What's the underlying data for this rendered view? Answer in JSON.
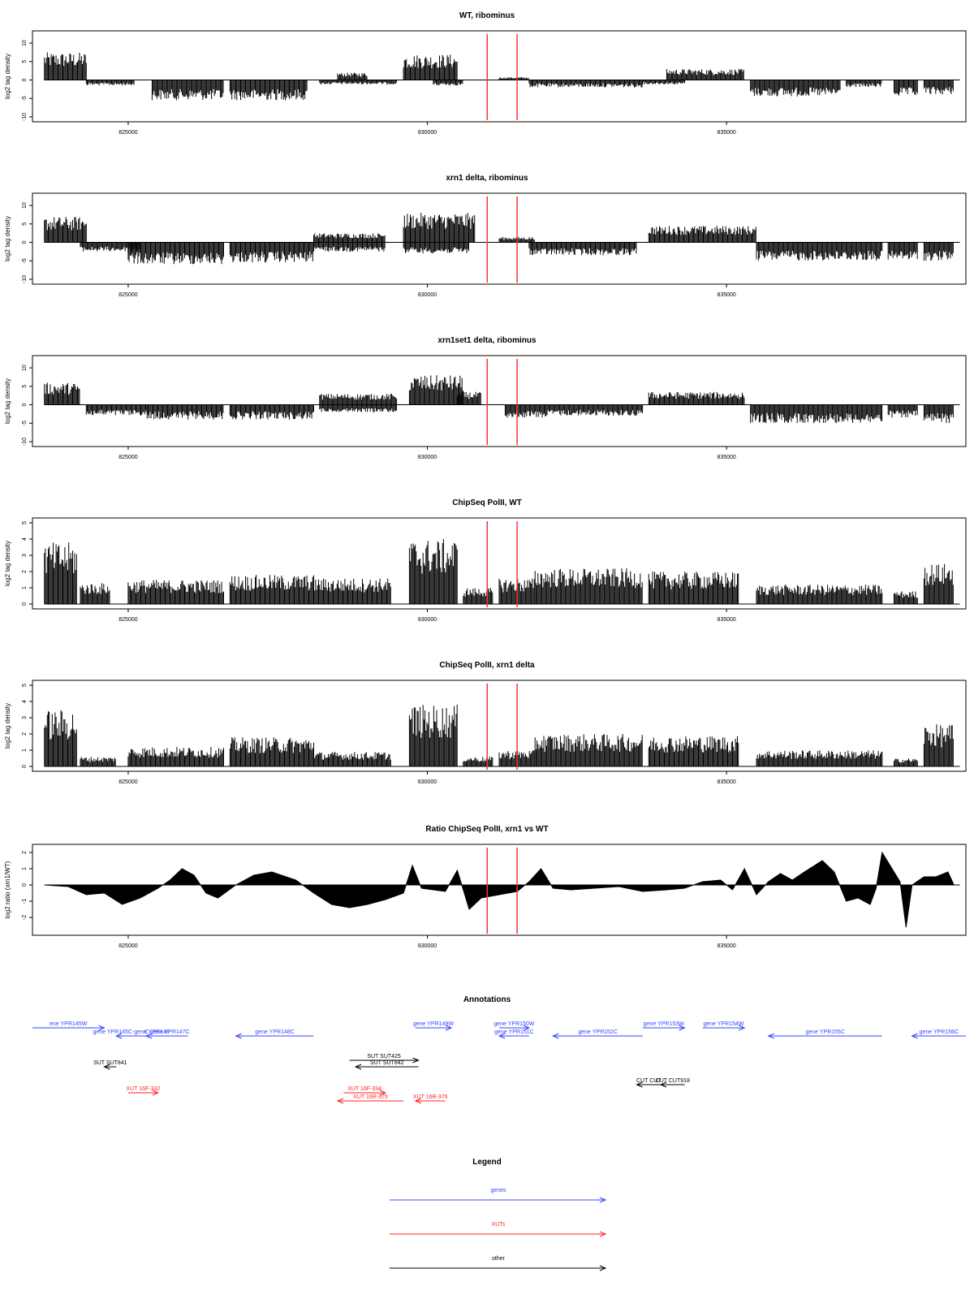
{
  "colors": {
    "gene": "#3344ff",
    "xut": "#ff2222",
    "other": "#000000",
    "marker": "#ff3333",
    "signal": "#000000"
  },
  "chart_data": [
    {
      "type": "bar",
      "title": "WT, ribominus",
      "ylabel": "log2 tag density",
      "xlim": [
        823400,
        839000
      ],
      "ylim": [
        -10,
        12
      ],
      "yticks": [
        -10,
        -5,
        0,
        5,
        10
      ],
      "xticks": [
        825000,
        830000,
        835000
      ],
      "markers": [
        831000,
        831500
      ],
      "segments": [
        {
          "x": [
            823600,
            824300
          ],
          "y": 7.5
        },
        {
          "x": [
            824300,
            825100
          ],
          "y": -1.5
        },
        {
          "x": [
            825400,
            826600
          ],
          "y": -5.5
        },
        {
          "x": [
            826700,
            828000
          ],
          "y": -5.5
        },
        {
          "x": [
            828200,
            829500
          ],
          "y": -1.2
        },
        {
          "x": [
            828500,
            829000
          ],
          "y": 2.0
        },
        {
          "x": [
            829600,
            830500
          ],
          "y": 7.0
        },
        {
          "x": [
            830100,
            830600
          ],
          "y": -1.5
        },
        {
          "x": [
            831200,
            831700
          ],
          "y": 0.8
        },
        {
          "x": [
            831700,
            833600
          ],
          "y": -2.0
        },
        {
          "x": [
            833600,
            834300
          ],
          "y": -1.2
        },
        {
          "x": [
            835400,
            836900
          ],
          "y": -4.5
        },
        {
          "x": [
            837000,
            837600
          ],
          "y": -2.0
        },
        {
          "x": [
            837800,
            838200
          ],
          "y": -4.5
        },
        {
          "x": [
            838300,
            838800
          ],
          "y": -4.0
        }
      ],
      "peaks": [
        {
          "x": [
            834000,
            835300
          ],
          "y": 3.0
        }
      ]
    },
    {
      "type": "bar",
      "title": "xrn1 delta, ribominus",
      "ylabel": "log2 tag density",
      "xlim": [
        823400,
        839000
      ],
      "ylim": [
        -10,
        12
      ],
      "yticks": [
        -10,
        -5,
        0,
        5,
        10
      ],
      "xticks": [
        825000,
        830000,
        835000
      ],
      "markers": [
        831000,
        831500
      ],
      "segments": [
        {
          "x": [
            823600,
            824300
          ],
          "y": 7.0
        },
        {
          "x": [
            824200,
            825200
          ],
          "y": -2.5
        },
        {
          "x": [
            825000,
            826600
          ],
          "y": -6.0
        },
        {
          "x": [
            826700,
            828100
          ],
          "y": -5.5
        },
        {
          "x": [
            828100,
            829300
          ],
          "y": 2.5
        },
        {
          "x": [
            828100,
            829300
          ],
          "y": -2.5
        },
        {
          "x": [
            829600,
            830800
          ],
          "y": 8.0
        },
        {
          "x": [
            829600,
            830700
          ],
          "y": -3.0
        },
        {
          "x": [
            831200,
            831800
          ],
          "y": 1.5
        },
        {
          "x": [
            831700,
            833500
          ],
          "y": -3.5
        },
        {
          "x": [
            833700,
            835500
          ],
          "y": 4.5
        },
        {
          "x": [
            835500,
            837600
          ],
          "y": -5.0
        },
        {
          "x": [
            837700,
            838200
          ],
          "y": -5.0
        },
        {
          "x": [
            838300,
            838800
          ],
          "y": -5.0
        }
      ],
      "peaks": []
    },
    {
      "type": "bar",
      "title": "xrn1set1 delta, ribominus",
      "ylabel": "log2 tag density",
      "xlim": [
        823400,
        839000
      ],
      "ylim": [
        -10,
        12
      ],
      "yticks": [
        -10,
        -5,
        0,
        5,
        10
      ],
      "xticks": [
        825000,
        830000,
        835000
      ],
      "markers": [
        831000,
        831500
      ],
      "segments": [
        {
          "x": [
            823600,
            824200
          ],
          "y": 6.0
        },
        {
          "x": [
            824300,
            825300
          ],
          "y": -3.0
        },
        {
          "x": [
            825300,
            826600
          ],
          "y": -4.0
        },
        {
          "x": [
            826700,
            828100
          ],
          "y": -4.0
        },
        {
          "x": [
            828200,
            829500
          ],
          "y": 3.0
        },
        {
          "x": [
            828200,
            829500
          ],
          "y": -2.0
        },
        {
          "x": [
            829700,
            830600
          ],
          "y": 8.0
        },
        {
          "x": [
            830500,
            830900
          ],
          "y": 3.5
        },
        {
          "x": [
            831300,
            832000
          ],
          "y": -3.5
        },
        {
          "x": [
            832000,
            833600
          ],
          "y": -3.0
        },
        {
          "x": [
            833700,
            835300
          ],
          "y": 3.5
        },
        {
          "x": [
            835400,
            837600
          ],
          "y": -5.0
        },
        {
          "x": [
            837700,
            838200
          ],
          "y": -3.5
        },
        {
          "x": [
            838300,
            838800
          ],
          "y": -5.0
        }
      ],
      "peaks": []
    },
    {
      "type": "bar",
      "title": "ChipSeq PolII, WT",
      "ylabel": "log2 tag density",
      "xlim": [
        823400,
        839000
      ],
      "ylim": [
        0,
        5
      ],
      "yticks": [
        0,
        1,
        2,
        3,
        4,
        5
      ],
      "xticks": [
        825000,
        830000,
        835000
      ],
      "markers": [
        831000,
        831500
      ],
      "segments": [
        {
          "x": [
            823600,
            824150
          ],
          "y": 3.8
        },
        {
          "x": [
            824200,
            824700
          ],
          "y": 1.3
        },
        {
          "x": [
            825000,
            826600
          ],
          "y": 1.5
        },
        {
          "x": [
            826700,
            828100
          ],
          "y": 1.8
        },
        {
          "x": [
            828100,
            829400
          ],
          "y": 1.6
        },
        {
          "x": [
            829700,
            830500
          ],
          "y": 4.0
        },
        {
          "x": [
            830600,
            831100
          ],
          "y": 1.0
        },
        {
          "x": [
            831200,
            831800
          ],
          "y": 1.6
        },
        {
          "x": [
            831800,
            833600
          ],
          "y": 2.2
        },
        {
          "x": [
            833700,
            835200
          ],
          "y": 2.0
        },
        {
          "x": [
            835500,
            837600
          ],
          "y": 1.2
        },
        {
          "x": [
            837800,
            838200
          ],
          "y": 0.8
        },
        {
          "x": [
            838300,
            838800
          ],
          "y": 2.5
        }
      ],
      "peaks": []
    },
    {
      "type": "bar",
      "title": "ChipSeq PolII, xrn1 delta",
      "ylabel": "log2 tag density",
      "xlim": [
        823400,
        839000
      ],
      "ylim": [
        0,
        5
      ],
      "yticks": [
        0,
        1,
        2,
        3,
        4,
        5
      ],
      "xticks": [
        825000,
        830000,
        835000
      ],
      "markers": [
        831000,
        831500
      ],
      "segments": [
        {
          "x": [
            823600,
            824150
          ],
          "y": 3.5
        },
        {
          "x": [
            824200,
            824800
          ],
          "y": 0.6
        },
        {
          "x": [
            825000,
            826600
          ],
          "y": 1.2
        },
        {
          "x": [
            826700,
            828100
          ],
          "y": 1.8
        },
        {
          "x": [
            828100,
            829400
          ],
          "y": 0.9
        },
        {
          "x": [
            829700,
            830500
          ],
          "y": 3.8
        },
        {
          "x": [
            830600,
            831100
          ],
          "y": 0.6
        },
        {
          "x": [
            831200,
            831800
          ],
          "y": 1.0
        },
        {
          "x": [
            831800,
            833600
          ],
          "y": 2.0
        },
        {
          "x": [
            833700,
            835200
          ],
          "y": 1.9
        },
        {
          "x": [
            835500,
            837600
          ],
          "y": 1.0
        },
        {
          "x": [
            837800,
            838200
          ],
          "y": 0.5
        },
        {
          "x": [
            838300,
            838800
          ],
          "y": 2.6
        }
      ],
      "peaks": []
    },
    {
      "type": "area",
      "title": "Ratio ChipSeq PolII, xrn1 vs WT",
      "ylabel": "log2 ratio (xrn1/WT)",
      "xlim": [
        823400,
        839000
      ],
      "ylim": [
        -2.8,
        2.2
      ],
      "yticks": [
        -2,
        -1,
        0,
        1,
        2
      ],
      "xticks": [
        825000,
        830000,
        835000
      ],
      "markers": [
        831000,
        831500
      ],
      "x": [
        823600,
        824000,
        824300,
        824600,
        824900,
        825200,
        825500,
        825700,
        825900,
        826100,
        826300,
        826500,
        826800,
        827100,
        827400,
        827800,
        828100,
        828400,
        828700,
        829000,
        829300,
        829600,
        829750,
        829900,
        830100,
        830300,
        830500,
        830700,
        830900,
        831200,
        831500,
        831700,
        831900,
        832100,
        832400,
        832800,
        833200,
        833600,
        834000,
        834300,
        834600,
        834900,
        835100,
        835300,
        835500,
        835700,
        835900,
        836100,
        836300,
        836600,
        836800,
        837000,
        837200,
        837400,
        837500,
        837600,
        837800,
        837900,
        838000,
        838100,
        838300,
        838500,
        838700,
        838800
      ],
      "y": [
        0.0,
        -0.1,
        -0.6,
        -0.5,
        -1.2,
        -0.8,
        -0.2,
        0.3,
        1.0,
        0.6,
        -0.5,
        -0.8,
        0.0,
        0.6,
        0.8,
        0.3,
        -0.5,
        -1.2,
        -1.4,
        -1.2,
        -0.9,
        -0.5,
        1.2,
        -0.2,
        -0.3,
        -0.4,
        0.9,
        -1.5,
        -0.8,
        -0.6,
        -0.4,
        0.2,
        1.0,
        -0.2,
        -0.3,
        -0.2,
        -0.1,
        -0.4,
        -0.3,
        -0.2,
        0.2,
        0.3,
        -0.3,
        1.0,
        -0.6,
        0.2,
        0.7,
        0.3,
        0.8,
        1.5,
        0.8,
        -1.0,
        -0.8,
        -1.2,
        -0.2,
        2.0,
        0.8,
        0.2,
        -2.6,
        0.0,
        0.5,
        0.5,
        0.8,
        0.0
      ]
    }
  ],
  "annotations": {
    "title": "Annotations",
    "xlim": [
      823400,
      839000
    ],
    "features": [
      {
        "label": "ene YPR145W",
        "type": "gene",
        "start": 823400,
        "end": 824600,
        "dir": "+",
        "row": 0
      },
      {
        "label": "gene YPR145C-gene YPR146",
        "type": "gene",
        "start": 824800,
        "end": 825300,
        "dir": "-",
        "row": 1
      },
      {
        "label": "C gene YPR147C",
        "type": "gene",
        "start": 825300,
        "end": 826000,
        "dir": "-",
        "row": 1
      },
      {
        "label": "gene YPR148C",
        "type": "gene",
        "start": 826800,
        "end": 828100,
        "dir": "-",
        "row": 1
      },
      {
        "label": "gene YPR149W",
        "type": "gene",
        "start": 829800,
        "end": 830400,
        "dir": "+",
        "row": 0
      },
      {
        "label": "gene YPR150W",
        "type": "gene",
        "start": 831200,
        "end": 831700,
        "dir": "+",
        "row": 0
      },
      {
        "label": "gene YPR151C",
        "type": "gene",
        "start": 831200,
        "end": 831700,
        "dir": "-",
        "row": 1
      },
      {
        "label": "gene YPR152C",
        "type": "gene",
        "start": 832100,
        "end": 833600,
        "dir": "-",
        "row": 1
      },
      {
        "label": "gene YPR153W",
        "type": "gene",
        "start": 833600,
        "end": 834300,
        "dir": "+",
        "row": 0
      },
      {
        "label": "gene YPR154W",
        "type": "gene",
        "start": 834600,
        "end": 835300,
        "dir": "+",
        "row": 0
      },
      {
        "label": "gene YPR155C",
        "type": "gene",
        "start": 835700,
        "end": 837600,
        "dir": "-",
        "row": 1
      },
      {
        "label": "gene YPR156C",
        "type": "gene",
        "start": 838100,
        "end": 839000,
        "dir": "-",
        "row": 1
      },
      {
        "label": "SUT SUT425",
        "type": "other",
        "start": 828700,
        "end": 829850,
        "dir": "+",
        "row": 3
      },
      {
        "label": "SUT SUT842",
        "type": "other",
        "start": 828800,
        "end": 829850,
        "dir": "-",
        "row": 4
      },
      {
        "label": "SUT SUT841",
        "type": "other",
        "start": 824600,
        "end": 824800,
        "dir": "-",
        "row": 4
      },
      {
        "label": "CUT CUT",
        "type": "other",
        "start": 833500,
        "end": 833900,
        "dir": "-",
        "row": 6
      },
      {
        "label": "CUT CUT918",
        "type": "other",
        "start": 833900,
        "end": 834300,
        "dir": "-",
        "row": 6
      },
      {
        "label": "XUT 16F-332",
        "type": "xut",
        "start": 825000,
        "end": 825500,
        "dir": "+",
        "row": 7
      },
      {
        "label": "XUT 16F-334",
        "type": "xut",
        "start": 828600,
        "end": 829300,
        "dir": "+",
        "row": 7
      },
      {
        "label": "XUT 16R-375",
        "type": "xut",
        "start": 828500,
        "end": 829600,
        "dir": "-",
        "row": 8
      },
      {
        "label": "XUT 16R-376",
        "type": "xut",
        "start": 829800,
        "end": 830300,
        "dir": "-",
        "row": 8
      }
    ]
  },
  "legend": {
    "title": "Legend",
    "entries": [
      {
        "label": "genes",
        "type": "gene"
      },
      {
        "label": "XUTs",
        "type": "xut"
      },
      {
        "label": "other",
        "type": "other"
      }
    ]
  }
}
